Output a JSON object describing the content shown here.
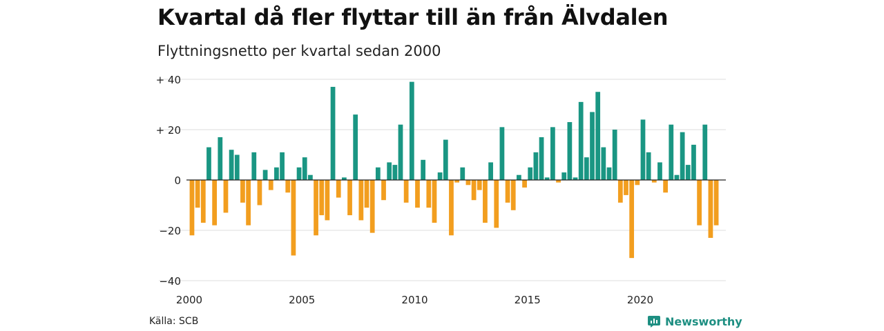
{
  "title": "Kvartal då fler flyttar till än från Älvdalen",
  "subtitle": "Flyttningsnetto per kvartal sedan 2000",
  "source": "Källa: SCB",
  "brand": {
    "name": "Newsworthy",
    "icon": "newsworthy-logo-icon"
  },
  "colors": {
    "positive": "#1a9683",
    "negative": "#f29e1f",
    "grid": "#dddddd",
    "baseline": "#222222"
  },
  "chart_data": {
    "type": "bar",
    "title": "Kvartal då fler flyttar till än från Älvdalen",
    "subtitle": "Flyttningsnetto per kvartal sedan 2000",
    "x_start_year": 2000,
    "x_end_year": 2023,
    "x_ticks": [
      "2000",
      "2005",
      "2010",
      "2015",
      "2020"
    ],
    "y_ticks": [
      "+ 40",
      "+ 20",
      "0",
      "−20",
      "−40"
    ],
    "ylim": [
      -40,
      40
    ],
    "grid": true,
    "values": [
      -22,
      -11,
      -17,
      13,
      -18,
      17,
      -13,
      12,
      10,
      -9,
      -18,
      11,
      -10,
      4,
      -4,
      5,
      11,
      -5,
      -30,
      5,
      9,
      2,
      -22,
      -14,
      -16,
      37,
      -7,
      1,
      -14,
      26,
      -16,
      -11,
      -21,
      5,
      -8,
      7,
      6,
      22,
      -9,
      39,
      -11,
      8,
      -11,
      -17,
      3,
      16,
      -22,
      -1,
      5,
      -2,
      -8,
      -4,
      -17,
      7,
      -19,
      21,
      -9,
      -12,
      2,
      -3,
      5,
      11,
      17,
      1,
      21,
      -1,
      3,
      23,
      1,
      31,
      9,
      27,
      35,
      13,
      5,
      20,
      -9,
      -6,
      -31,
      -2,
      24,
      11,
      -1,
      7,
      -5,
      22,
      2,
      19,
      6,
      14,
      -18,
      22,
      -23,
      -18
    ]
  }
}
